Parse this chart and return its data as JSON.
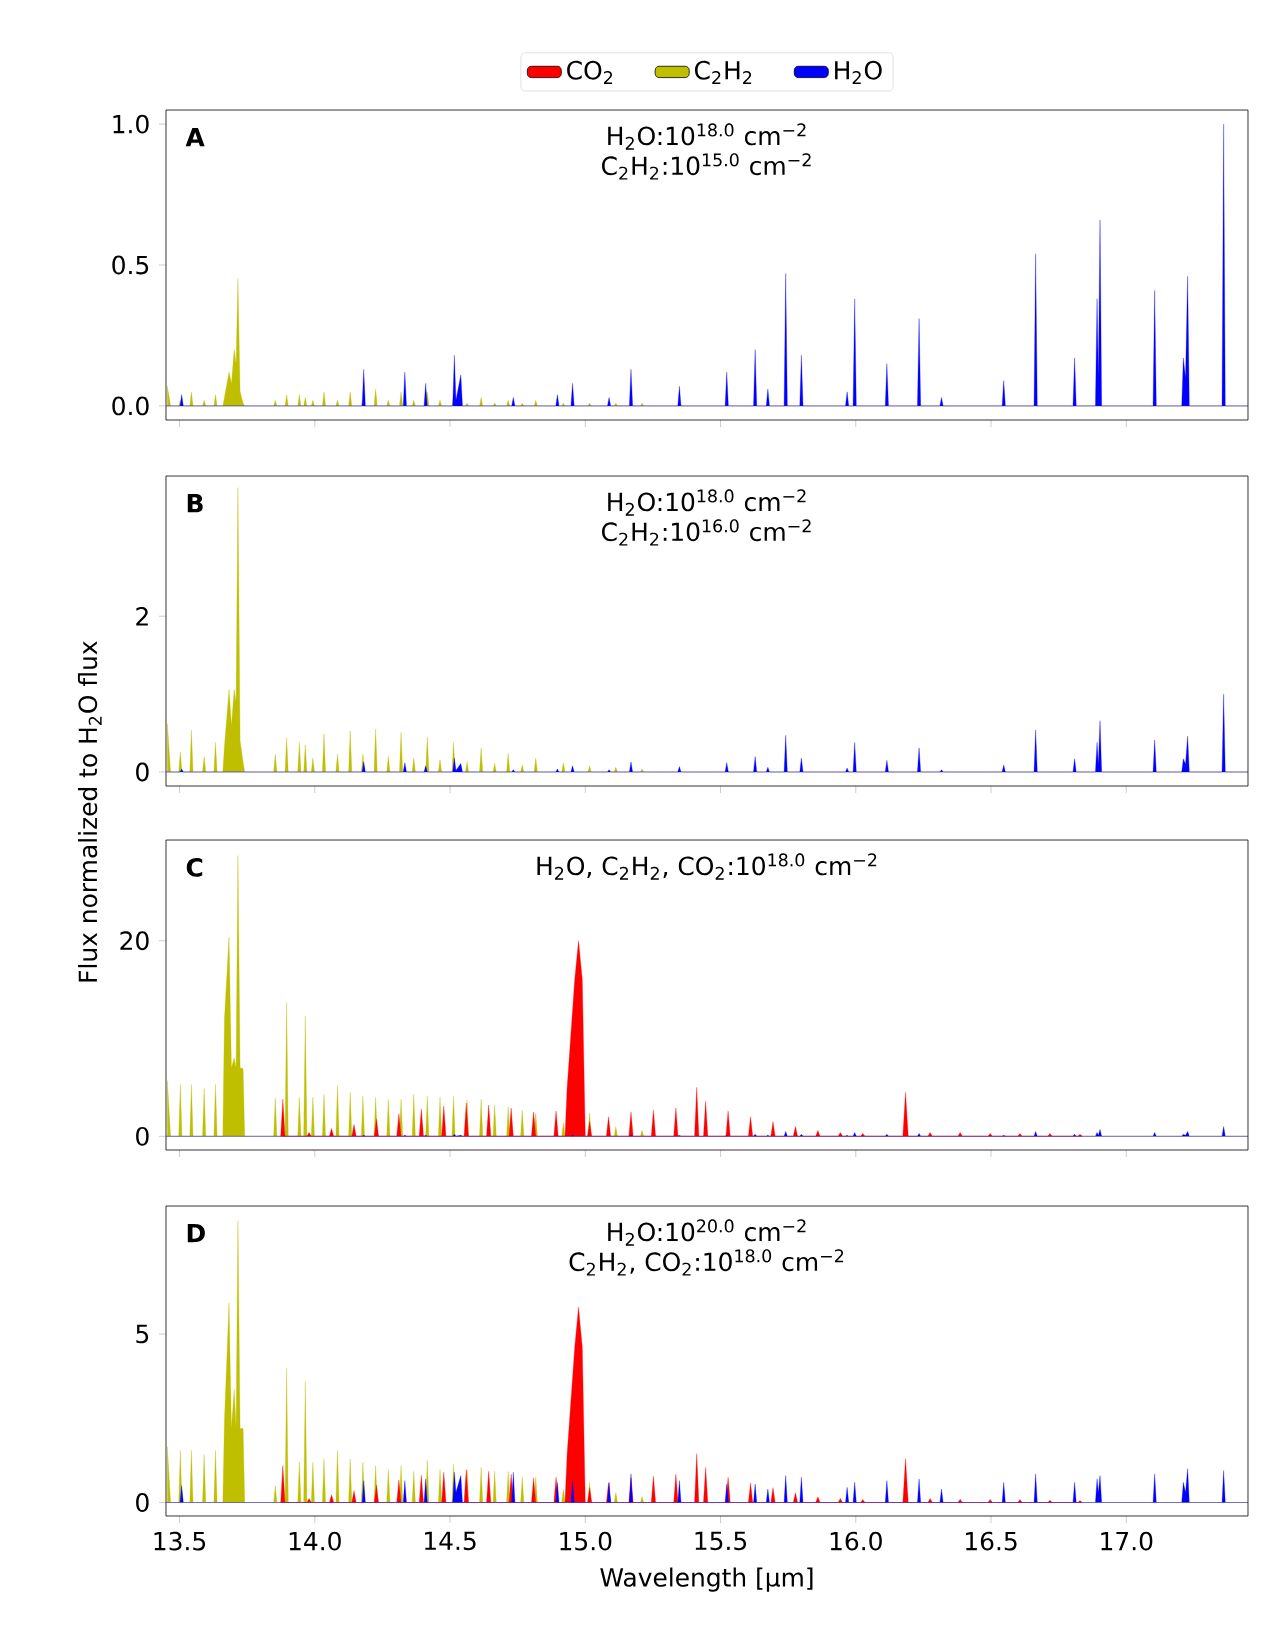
{
  "chart_data": [
    {
      "type": "area",
      "legend": "top",
      "tick_labels": "y",
      "annotations": [
        "A",
        "H$_{2}$O:10$^{18.0}$ cm$^{−2}$",
        "C$_{2}$H$_{2}$:10$^{15.0}$ cm$^{−2}$"
      ],
      "xlim": [
        13.45,
        17.45
      ],
      "xticks": [
        13.5,
        14,
        14.5,
        15,
        15.5,
        16,
        16.5,
        17
      ],
      "ylim": [
        -0.05,
        1.05
      ],
      "yticks": [
        {
          "value": 0,
          "label": "0.0"
        },
        0.5,
        {
          "value": 1,
          "label": "1.0"
        }
      ],
      "series": [
        {
          "name": "CO$_{2}$",
          "color": "#ff0000"
        },
        {
          "name": "C$_{2}$H$_{2}$",
          "color": "#bfbf00",
          "x": [
            13.455,
            13.467,
            13.497,
            13.503,
            13.509,
            13.538,
            13.544,
            13.55,
            13.585,
            13.591,
            13.597,
            13.627,
            13.633,
            13.639,
            13.66,
            13.666,
            13.683,
            13.692,
            13.702,
            13.709,
            13.716,
            13.724,
            13.735,
            13.741,
            13.848,
            13.854,
            13.86,
            13.89,
            13.896,
            13.902,
            13.937,
            13.943,
            13.949,
            13.959,
            13.965,
            13.971,
            13.987,
            13.993,
            13.999,
            14.028,
            14.034,
            14.04,
            14.078,
            14.084,
            14.09,
            14.125,
            14.131,
            14.137,
            14.172,
            14.178,
            14.184,
            14.219,
            14.225,
            14.231,
            14.266,
            14.272,
            14.278,
            14.313,
            14.319,
            14.325,
            14.36,
            14.366,
            14.372,
            14.41,
            14.416,
            14.422,
            14.457,
            14.463,
            14.469,
            14.507,
            14.513,
            14.519,
            14.557,
            14.563,
            14.569,
            14.609,
            14.615,
            14.621,
            14.659,
            14.665,
            14.671,
            14.709,
            14.715,
            14.721,
            14.761,
            14.767,
            14.773,
            14.811,
            14.817,
            14.823,
            14.913,
            14.919,
            14.925,
            15.01,
            15.016,
            15.022,
            15.107,
            15.113,
            15.119,
            15.204,
            15.21,
            15.216,
            17.45
          ],
          "values": [
            0.07,
            0,
            0,
            0.02,
            0,
            0,
            0.05,
            0,
            0,
            0.02,
            0,
            0,
            0.04,
            0,
            0,
            0.03,
            0.12,
            0.08,
            0.2,
            0.15,
            0.45,
            0.05,
            0.01,
            0,
            0,
            0.02,
            0,
            0,
            0.04,
            0,
            0,
            0.04,
            0,
            0,
            0.03,
            0,
            0,
            0.02,
            0,
            0,
            0.05,
            0,
            0,
            0.02,
            0,
            0,
            0.05,
            0,
            0,
            0.02,
            0,
            0,
            0.06,
            0,
            0,
            0.02,
            0,
            0,
            0.05,
            0,
            0,
            0.02,
            0,
            0,
            0.05,
            0,
            0,
            0.02,
            0,
            0,
            0.04,
            0,
            0,
            0.01,
            0,
            0,
            0.03,
            0,
            0,
            0.01,
            0,
            0,
            0.02,
            0,
            0,
            0.01,
            0,
            0,
            0.02,
            0,
            0,
            0.01,
            0,
            0,
            0.01,
            0,
            0,
            0.01,
            0,
            0,
            0.01,
            0,
            0
          ]
        },
        {
          "name": "H$_{2}$O",
          "color": "#0000ff",
          "x": [
            13.45,
            13.502,
            13.508,
            13.514,
            14.175,
            14.181,
            14.187,
            14.327,
            14.333,
            14.339,
            14.404,
            14.41,
            14.416,
            14.51,
            14.516,
            14.522,
            14.54,
            14.546,
            14.728,
            14.734,
            14.74,
            14.891,
            14.897,
            14.903,
            14.947,
            14.953,
            14.959,
            15.082,
            15.088,
            15.094,
            15.163,
            15.169,
            15.175,
            15.342,
            15.348,
            15.354,
            15.517,
            15.523,
            15.529,
            15.622,
            15.628,
            15.634,
            15.669,
            15.675,
            15.681,
            15.735,
            15.741,
            15.747,
            15.793,
            15.799,
            15.805,
            15.962,
            15.968,
            15.974,
            15.99,
            15.996,
            16.002,
            16.109,
            16.115,
            16.121,
            16.228,
            16.234,
            16.24,
            16.311,
            16.317,
            16.323,
            16.541,
            16.547,
            16.553,
            16.659,
            16.665,
            16.671,
            16.803,
            16.809,
            16.815,
            16.886,
            16.892,
            16.897,
            16.903,
            16.909,
            17.099,
            17.105,
            17.111,
            17.205,
            17.211,
            17.219,
            17.227,
            17.233,
            17.354,
            17.36,
            17.366,
            17.45
          ],
          "values": [
            0,
            0,
            0.04,
            0,
            0,
            0.13,
            0,
            0,
            0.12,
            0,
            0,
            0.08,
            0,
            0,
            0.18,
            0.02,
            0.11,
            0,
            0,
            0.03,
            0,
            0,
            0.04,
            0,
            0,
            0.08,
            0,
            0,
            0.03,
            0,
            0,
            0.13,
            0,
            0,
            0.07,
            0,
            0,
            0.12,
            0,
            0,
            0.2,
            0,
            0,
            0.06,
            0,
            0,
            0.47,
            0,
            0,
            0.18,
            0,
            0,
            0.05,
            0,
            0,
            0.38,
            0,
            0,
            0.15,
            0,
            0,
            0.31,
            0,
            0,
            0.03,
            0,
            0,
            0.09,
            0,
            0,
            0.54,
            0,
            0,
            0.17,
            0,
            0,
            0.38,
            0.1,
            0.66,
            0,
            0,
            0.41,
            0,
            0,
            0.17,
            0.1,
            0.46,
            0,
            0,
            1.0,
            0,
            0
          ]
        }
      ]
    },
    {
      "type": "area",
      "tick_labels": "y",
      "annotations": [
        "B",
        "H$_{2}$O:10$^{18.0}$ cm$^{−2}$",
        "C$_{2}$H$_{2}$:10$^{16.0}$ cm$^{−2}$"
      ],
      "xlim": [
        13.45,
        17.45
      ],
      "xticks": [
        13.5,
        14,
        14.5,
        15,
        15.5,
        16,
        16.5,
        17
      ],
      "ylim": [
        -0.18,
        3.8
      ],
      "yticks": [
        0,
        2
      ],
      "series": [
        {
          "color": "#bfbf00",
          "x": [
            13.455,
            13.467,
            13.497,
            13.503,
            13.509,
            13.538,
            13.544,
            13.55,
            13.585,
            13.591,
            13.597,
            13.627,
            13.633,
            13.639,
            13.66,
            13.666,
            13.683,
            13.692,
            13.702,
            13.709,
            13.716,
            13.724,
            13.735,
            13.741,
            13.848,
            13.854,
            13.86,
            13.89,
            13.896,
            13.902,
            13.937,
            13.943,
            13.949,
            13.959,
            13.965,
            13.971,
            13.987,
            13.993,
            13.999,
            14.028,
            14.034,
            14.04,
            14.078,
            14.084,
            14.09,
            14.125,
            14.131,
            14.137,
            14.172,
            14.178,
            14.184,
            14.219,
            14.225,
            14.231,
            14.266,
            14.272,
            14.278,
            14.313,
            14.319,
            14.325,
            14.36,
            14.366,
            14.372,
            14.41,
            14.416,
            14.422,
            14.457,
            14.463,
            14.469,
            14.507,
            14.513,
            14.519,
            14.557,
            14.563,
            14.569,
            14.609,
            14.615,
            14.621,
            14.659,
            14.665,
            14.671,
            14.709,
            14.715,
            14.721,
            14.761,
            14.767,
            14.773,
            14.811,
            14.817,
            14.823,
            14.913,
            14.919,
            14.925,
            15.01,
            15.016,
            15.022,
            15.107,
            15.113,
            15.119,
            15.204,
            15.21,
            15.216,
            17.45
          ],
          "values": [
            0.62,
            0,
            0,
            0.26,
            0,
            0,
            0.54,
            0,
            0,
            0.2,
            0,
            0,
            0.38,
            0,
            0,
            0.33,
            1.06,
            0.6,
            1.06,
            0.9,
            3.65,
            0.4,
            0.13,
            0,
            0,
            0.23,
            0,
            0,
            0.44,
            0,
            0,
            0.38,
            0,
            0,
            0.35,
            0,
            0,
            0.18,
            0,
            0,
            0.49,
            0,
            0,
            0.23,
            0,
            0,
            0.53,
            0,
            0,
            0.23,
            0,
            0,
            0.55,
            0,
            0,
            0.2,
            0,
            0,
            0.51,
            0,
            0,
            0.18,
            0,
            0,
            0.45,
            0,
            0,
            0.16,
            0,
            0,
            0.38,
            0,
            0,
            0.13,
            0,
            0,
            0.31,
            0,
            0,
            0.11,
            0,
            0,
            0.24,
            0,
            0,
            0.09,
            0,
            0,
            0.18,
            0,
            0,
            0.12,
            0,
            0,
            0.08,
            0,
            0,
            0.06,
            0,
            0,
            0.04,
            0,
            0
          ]
        },
        {
          "color": "#0000ff",
          "x": [
            13.45,
            13.502,
            13.508,
            13.514,
            14.175,
            14.181,
            14.187,
            14.327,
            14.333,
            14.339,
            14.404,
            14.41,
            14.416,
            14.51,
            14.516,
            14.522,
            14.54,
            14.546,
            14.728,
            14.734,
            14.74,
            14.891,
            14.897,
            14.903,
            14.947,
            14.953,
            14.959,
            15.082,
            15.088,
            15.094,
            15.163,
            15.169,
            15.175,
            15.342,
            15.348,
            15.354,
            15.517,
            15.523,
            15.529,
            15.622,
            15.628,
            15.634,
            15.669,
            15.675,
            15.681,
            15.735,
            15.741,
            15.747,
            15.793,
            15.799,
            15.805,
            15.962,
            15.968,
            15.974,
            15.99,
            15.996,
            16.002,
            16.109,
            16.115,
            16.121,
            16.228,
            16.234,
            16.24,
            16.311,
            16.317,
            16.323,
            16.541,
            16.547,
            16.553,
            16.659,
            16.665,
            16.671,
            16.803,
            16.809,
            16.815,
            16.886,
            16.892,
            16.897,
            16.903,
            16.909,
            17.099,
            17.105,
            17.111,
            17.205,
            17.211,
            17.219,
            17.227,
            17.233,
            17.354,
            17.36,
            17.366,
            17.45
          ],
          "values": [
            0,
            0,
            0.04,
            0,
            0,
            0.13,
            0,
            0,
            0.12,
            0,
            0,
            0.08,
            0,
            0,
            0.18,
            0.02,
            0.11,
            0,
            0,
            0.03,
            0,
            0,
            0.04,
            0,
            0,
            0.08,
            0,
            0,
            0.03,
            0,
            0,
            0.13,
            0,
            0,
            0.07,
            0,
            0,
            0.12,
            0,
            0,
            0.2,
            0,
            0,
            0.06,
            0,
            0,
            0.47,
            0,
            0,
            0.18,
            0,
            0,
            0.05,
            0,
            0,
            0.38,
            0,
            0,
            0.15,
            0,
            0,
            0.31,
            0,
            0,
            0.03,
            0,
            0,
            0.09,
            0,
            0,
            0.54,
            0,
            0,
            0.17,
            0,
            0,
            0.38,
            0.1,
            0.66,
            0,
            0,
            0.41,
            0,
            0,
            0.17,
            0.1,
            0.46,
            0,
            0,
            1.0,
            0,
            0
          ]
        }
      ]
    },
    {
      "type": "area",
      "tick_labels": "y",
      "ylabel": "Flux normalized to H$_{2}$O flux",
      "annotations": [
        "C",
        "H$_{2}$O, C$_{2}$H$_{2}$, CO$_{2}$:10$^{18.0}$ cm$^{−2}$"
      ],
      "xlim": [
        13.45,
        17.45
      ],
      "xticks": [
        13.5,
        14,
        14.5,
        15,
        15.5,
        16,
        16.5,
        17
      ],
      "ylim": [
        -1.4,
        30.3
      ],
      "yticks": [
        0,
        20
      ],
      "series": [
        {
          "color": "#bfbf00",
          "x": [
            13.455,
            13.467,
            13.497,
            13.503,
            13.509,
            13.538,
            13.544,
            13.55,
            13.585,
            13.591,
            13.597,
            13.627,
            13.633,
            13.639,
            13.66,
            13.666,
            13.683,
            13.692,
            13.702,
            13.709,
            13.716,
            13.724,
            13.735,
            13.741,
            13.848,
            13.854,
            13.86,
            13.89,
            13.896,
            13.902,
            13.937,
            13.943,
            13.949,
            13.959,
            13.965,
            13.971,
            13.987,
            13.993,
            13.999,
            14.028,
            14.034,
            14.04,
            14.078,
            14.084,
            14.09,
            14.125,
            14.131,
            14.137,
            14.172,
            14.178,
            14.184,
            14.219,
            14.225,
            14.231,
            14.266,
            14.272,
            14.278,
            14.313,
            14.319,
            14.325,
            14.36,
            14.366,
            14.372,
            14.41,
            14.416,
            14.422,
            14.457,
            14.463,
            14.469,
            14.507,
            14.513,
            14.519,
            14.557,
            14.563,
            14.569,
            14.609,
            14.615,
            14.621,
            14.659,
            14.665,
            14.671,
            14.709,
            14.715,
            14.721,
            14.761,
            14.767,
            14.773,
            14.811,
            14.817,
            14.823,
            14.913,
            14.919,
            14.925,
            15.01,
            15.016,
            15.022,
            15.107,
            15.113,
            15.119,
            15.204,
            15.21,
            15.216,
            17.45
          ],
          "values": [
            5.7,
            0,
            0,
            5.3,
            0,
            0,
            5.3,
            0,
            0,
            4.9,
            0,
            0,
            5.3,
            0,
            0,
            12,
            20.4,
            7,
            8,
            7,
            28.7,
            7,
            6.9,
            0,
            0,
            3.9,
            0,
            0,
            13.7,
            0,
            0,
            4,
            0,
            0,
            12.3,
            0,
            0,
            4,
            0,
            0,
            4.3,
            0,
            0,
            5.2,
            0,
            0,
            4.5,
            0,
            0,
            4.1,
            0,
            0,
            4,
            0,
            0,
            3.8,
            0,
            0,
            3.8,
            0,
            0,
            4.3,
            0,
            0,
            4.1,
            0,
            0,
            4,
            0,
            0,
            4.1,
            0,
            0,
            3.7,
            0,
            0,
            3.8,
            0,
            0,
            3.2,
            0,
            0,
            3,
            0,
            0,
            2.7,
            0,
            0,
            2.4,
            0,
            0,
            1.4,
            0,
            0,
            2.4,
            0,
            0,
            1,
            0,
            0,
            0.6,
            0,
            0
          ]
        },
        {
          "color": "#ff0000",
          "x": [
            13.874,
            13.882,
            13.89,
            13.971,
            13.979,
            13.987,
            14.054,
            14.062,
            14.07,
            14.137,
            14.145,
            14.153,
            14.22,
            14.228,
            14.236,
            14.303,
            14.311,
            14.319,
            14.386,
            14.394,
            14.402,
            14.469,
            14.477,
            14.485,
            14.552,
            14.56,
            14.568,
            14.635,
            14.643,
            14.651,
            14.718,
            14.726,
            14.734,
            14.801,
            14.809,
            14.817,
            14.884,
            14.892,
            14.9,
            14.925,
            14.933,
            14.961,
            14.975,
            14.989,
            15.0,
            15.008,
            15.016,
            15.024,
            15.078,
            15.086,
            15.094,
            15.161,
            15.169,
            15.177,
            15.244,
            15.252,
            15.26,
            15.327,
            15.335,
            15.343,
            15.404,
            15.412,
            15.42,
            15.437,
            15.445,
            15.453,
            15.52,
            15.528,
            15.536,
            15.603,
            15.611,
            15.619,
            15.686,
            15.694,
            15.702,
            15.769,
            15.777,
            15.785,
            15.852,
            15.86,
            15.868,
            15.935,
            15.943,
            15.951,
            16.018,
            16.026,
            16.034,
            16.174,
            16.184,
            16.194,
            16.267,
            16.275,
            16.283,
            16.378,
            16.386,
            16.394,
            16.489,
            16.497,
            16.505,
            16.599,
            16.607,
            16.615,
            16.71,
            16.718,
            16.726,
            16.821,
            16.829,
            16.837
          ],
          "values": [
            0,
            3.8,
            0,
            0,
            0.4,
            0,
            0,
            0.8,
            0,
            0,
            1.2,
            0,
            0,
            1.8,
            0,
            0,
            2.3,
            0,
            0,
            2.8,
            0,
            0,
            3.1,
            0,
            0,
            3.4,
            0,
            0,
            3.2,
            0,
            0,
            2.9,
            0,
            0,
            2.5,
            0,
            0,
            2.6,
            0,
            0,
            5,
            16,
            20,
            16,
            0,
            0,
            1.5,
            0,
            0,
            2,
            0,
            0,
            2.5,
            0,
            0,
            2.7,
            0,
            0,
            2.9,
            0,
            0,
            5,
            0,
            0,
            3.6,
            0,
            0,
            2.6,
            0,
            0,
            2,
            0,
            0,
            1.5,
            0,
            0,
            1,
            0,
            0,
            0.6,
            0,
            0,
            0.4,
            0,
            0,
            0.3,
            0,
            0,
            4.5,
            0,
            0,
            0.4,
            0,
            0,
            0.4,
            0,
            0,
            0.3,
            0,
            0,
            0.3,
            0,
            0,
            0.3,
            0,
            0,
            0.2,
            0
          ]
        },
        {
          "color": "#0000ff",
          "x": [
            13.45,
            13.502,
            13.508,
            13.514,
            14.175,
            14.181,
            14.187,
            14.327,
            14.333,
            14.339,
            14.404,
            14.41,
            14.416,
            14.51,
            14.516,
            14.522,
            14.54,
            14.546,
            14.728,
            14.734,
            14.74,
            14.891,
            14.897,
            14.903,
            14.947,
            14.953,
            14.959,
            15.082,
            15.088,
            15.094,
            15.163,
            15.169,
            15.175,
            15.342,
            15.348,
            15.354,
            15.517,
            15.523,
            15.529,
            15.622,
            15.628,
            15.634,
            15.669,
            15.675,
            15.681,
            15.735,
            15.741,
            15.747,
            15.793,
            15.799,
            15.805,
            15.962,
            15.968,
            15.974,
            15.99,
            15.996,
            16.002,
            16.109,
            16.115,
            16.121,
            16.228,
            16.234,
            16.24,
            16.311,
            16.317,
            16.323,
            16.541,
            16.547,
            16.553,
            16.659,
            16.665,
            16.671,
            16.803,
            16.809,
            16.815,
            16.886,
            16.892,
            16.897,
            16.903,
            16.909,
            17.099,
            17.105,
            17.111,
            17.205,
            17.211,
            17.219,
            17.227,
            17.233,
            17.354,
            17.36,
            17.366,
            17.45
          ],
          "values": [
            0,
            0,
            0,
            0,
            0,
            0.1,
            0,
            0,
            0.1,
            0,
            0,
            0.1,
            0,
            0,
            0.2,
            0,
            0.1,
            0,
            0,
            0,
            0,
            0,
            0,
            0,
            0,
            0.1,
            0,
            0,
            0,
            0,
            0,
            0.1,
            0,
            0,
            0.1,
            0,
            0,
            0.1,
            0,
            0,
            0.2,
            0,
            0,
            0.1,
            0,
            0,
            0.5,
            0,
            0,
            0.2,
            0,
            0,
            0.1,
            0,
            0,
            0.4,
            0,
            0,
            0.2,
            0,
            0,
            0.3,
            0,
            0,
            0,
            0,
            0,
            0.1,
            0,
            0,
            0.5,
            0,
            0,
            0.2,
            0,
            0,
            0.4,
            0.1,
            0.7,
            0,
            0,
            0.4,
            0,
            0,
            0.2,
            0.1,
            0.5,
            0,
            0,
            1.0,
            0,
            0
          ]
        }
      ]
    },
    {
      "type": "area",
      "xlabel": "Wavelength [μm]",
      "annotations": [
        "D",
        "H$_{2}$O:10$^{20.0}$ cm$^{−2}$",
        "C$_{2}$H$_{2}$, CO$_{2}$:10$^{18.0}$ cm$^{−2}$"
      ],
      "xlim": [
        13.45,
        17.45
      ],
      "xticks": [
        13.5,
        {
          "value": 14,
          "label": "14.0"
        },
        14.5,
        {
          "value": 15,
          "label": "15.0"
        },
        15.5,
        {
          "value": 16,
          "label": "16.0"
        },
        16.5,
        {
          "value": 17,
          "label": "17.0"
        }
      ],
      "ylim": [
        -0.4,
        8.8
      ],
      "yticks": [
        0,
        5
      ],
      "series": [
        {
          "color": "#bfbf00",
          "x": [
            13.455,
            13.467,
            13.497,
            13.503,
            13.509,
            13.538,
            13.544,
            13.55,
            13.585,
            13.591,
            13.597,
            13.627,
            13.633,
            13.639,
            13.66,
            13.666,
            13.683,
            13.692,
            13.702,
            13.709,
            13.716,
            13.724,
            13.735,
            13.741,
            13.848,
            13.854,
            13.86,
            13.89,
            13.896,
            13.902,
            13.937,
            13.943,
            13.949,
            13.959,
            13.965,
            13.971,
            13.987,
            13.993,
            13.999,
            14.028,
            14.034,
            14.04,
            14.078,
            14.084,
            14.09,
            14.125,
            14.131,
            14.137,
            14.172,
            14.178,
            14.184,
            14.219,
            14.225,
            14.231,
            14.266,
            14.272,
            14.278,
            14.313,
            14.319,
            14.325,
            14.36,
            14.366,
            14.372,
            14.41,
            14.416,
            14.422,
            14.457,
            14.463,
            14.469,
            14.507,
            14.513,
            14.519,
            14.557,
            14.563,
            14.569,
            14.609,
            14.615,
            14.621,
            14.659,
            14.665,
            14.671,
            14.709,
            14.715,
            14.721,
            14.761,
            14.767,
            14.773,
            14.811,
            14.817,
            14.823,
            14.913,
            14.919,
            14.925,
            15.01,
            15.016,
            15.022,
            15.107,
            15.113,
            15.119,
            15.204,
            15.21,
            15.216,
            17.45
          ],
          "values": [
            1.66,
            0,
            0,
            1.55,
            0,
            0,
            1.55,
            0,
            0,
            1.43,
            0,
            0,
            1.55,
            0,
            0,
            2.45,
            5.93,
            2.2,
            3.36,
            2.2,
            8.36,
            2.2,
            2.2,
            0,
            0,
            0.5,
            0,
            0,
            3.98,
            0,
            0,
            1.2,
            0,
            0,
            3.6,
            0,
            0,
            1.2,
            0,
            0,
            1.3,
            0,
            0,
            1.55,
            0,
            0,
            1.3,
            0,
            0,
            1.2,
            0,
            0,
            1.1,
            0,
            0,
            0.98,
            0,
            0,
            1.1,
            0,
            0,
            0.93,
            0,
            0,
            1.25,
            0,
            0,
            0.98,
            0,
            0,
            1.14,
            0,
            0,
            0.98,
            0,
            0,
            1.05,
            0,
            0,
            0.93,
            0,
            0,
            0.93,
            0,
            0,
            0.75,
            0,
            0,
            0.75,
            0,
            0,
            0.4,
            0,
            0,
            0.6,
            0,
            0,
            0.3,
            0,
            0,
            0.18,
            0,
            0
          ]
        },
        {
          "color": "#ff0000",
          "x": [
            13.874,
            13.882,
            13.89,
            13.971,
            13.979,
            13.987,
            14.054,
            14.062,
            14.07,
            14.137,
            14.145,
            14.153,
            14.22,
            14.228,
            14.236,
            14.303,
            14.311,
            14.319,
            14.386,
            14.394,
            14.402,
            14.469,
            14.477,
            14.485,
            14.552,
            14.56,
            14.568,
            14.635,
            14.643,
            14.651,
            14.718,
            14.726,
            14.734,
            14.801,
            14.809,
            14.817,
            14.884,
            14.892,
            14.9,
            14.925,
            14.933,
            14.961,
            14.975,
            14.989,
            15.0,
            15.008,
            15.016,
            15.024,
            15.078,
            15.086,
            15.094,
            15.161,
            15.169,
            15.177,
            15.244,
            15.252,
            15.26,
            15.327,
            15.335,
            15.343,
            15.404,
            15.412,
            15.42,
            15.437,
            15.445,
            15.453,
            15.52,
            15.528,
            15.536,
            15.603,
            15.611,
            15.619,
            15.686,
            15.694,
            15.702,
            15.769,
            15.777,
            15.785,
            15.852,
            15.86,
            15.868,
            15.935,
            15.943,
            15.951,
            16.018,
            16.026,
            16.034,
            16.174,
            16.184,
            16.194,
            16.267,
            16.275,
            16.283,
            16.378,
            16.386,
            16.394,
            16.489,
            16.497,
            16.505,
            16.599,
            16.607,
            16.615,
            16.71,
            16.718,
            16.726,
            16.821,
            16.829,
            16.837
          ],
          "values": [
            0,
            1.1,
            0,
            0,
            0.12,
            0,
            0,
            0.23,
            0,
            0,
            0.35,
            0,
            0,
            0.52,
            0,
            0,
            0.67,
            0,
            0,
            0.81,
            0,
            0,
            0.9,
            0,
            0,
            0.98,
            0,
            0,
            0.93,
            0,
            0,
            0.84,
            0,
            0,
            0.73,
            0,
            0,
            0.75,
            0,
            0,
            1.45,
            4.6,
            5.8,
            4.6,
            0,
            0,
            0.44,
            0,
            0,
            0.58,
            0,
            0,
            0.73,
            0,
            0,
            0.78,
            0,
            0,
            0.84,
            0,
            0,
            1.45,
            0,
            0,
            1.04,
            0,
            0,
            0.75,
            0,
            0,
            0.58,
            0,
            0,
            0.44,
            0,
            0,
            0.29,
            0,
            0,
            0.17,
            0,
            0,
            0.12,
            0,
            0,
            0.09,
            0,
            0,
            1.3,
            0,
            0,
            0.12,
            0,
            0,
            0.1,
            0,
            0,
            0.09,
            0,
            0,
            0.09,
            0,
            0,
            0.07,
            0,
            0,
            0.06,
            0
          ]
        },
        {
          "color": "#0000ff",
          "x": [
            13.45,
            13.502,
            13.508,
            13.514,
            14.175,
            14.181,
            14.187,
            14.327,
            14.333,
            14.339,
            14.404,
            14.41,
            14.416,
            14.51,
            14.516,
            14.522,
            14.54,
            14.546,
            14.728,
            14.734,
            14.74,
            14.891,
            14.897,
            14.903,
            14.947,
            14.953,
            14.959,
            15.082,
            15.088,
            15.094,
            15.163,
            15.169,
            15.175,
            15.342,
            15.348,
            15.354,
            15.517,
            15.523,
            15.529,
            15.622,
            15.628,
            15.634,
            15.669,
            15.675,
            15.681,
            15.735,
            15.741,
            15.747,
            15.793,
            15.799,
            15.805,
            15.962,
            15.968,
            15.974,
            15.99,
            15.996,
            16.002,
            16.109,
            16.115,
            16.121,
            16.228,
            16.234,
            16.24,
            16.311,
            16.317,
            16.323,
            16.541,
            16.547,
            16.553,
            16.659,
            16.665,
            16.671,
            16.803,
            16.809,
            16.815,
            16.886,
            16.892,
            16.897,
            16.903,
            16.909,
            17.099,
            17.105,
            17.111,
            17.205,
            17.211,
            17.219,
            17.227,
            17.233,
            17.354,
            17.36,
            17.366,
            17.45
          ],
          "values": [
            0,
            0,
            0.5,
            0,
            0,
            0.65,
            0,
            0,
            0.65,
            0,
            0,
            0.7,
            0,
            0,
            0.9,
            0.3,
            0.8,
            0,
            0,
            0.9,
            0,
            0,
            0.6,
            0,
            0,
            0.65,
            0,
            0,
            0.6,
            0,
            0,
            0.85,
            0,
            0,
            0.65,
            0,
            0,
            0.55,
            0,
            0,
            0.55,
            0,
            0,
            0.4,
            0,
            0,
            0.8,
            0,
            0,
            0.75,
            0,
            0,
            0.45,
            0,
            0,
            0.6,
            0,
            0,
            0.65,
            0,
            0,
            0.7,
            0,
            0,
            0.4,
            0,
            0,
            0.6,
            0,
            0,
            0.85,
            0,
            0,
            0.6,
            0,
            0,
            0.7,
            0.3,
            0.8,
            0,
            0,
            0.85,
            0,
            0,
            0.6,
            0.3,
            1.0,
            0,
            0,
            0.95,
            0,
            0
          ]
        }
      ]
    }
  ]
}
